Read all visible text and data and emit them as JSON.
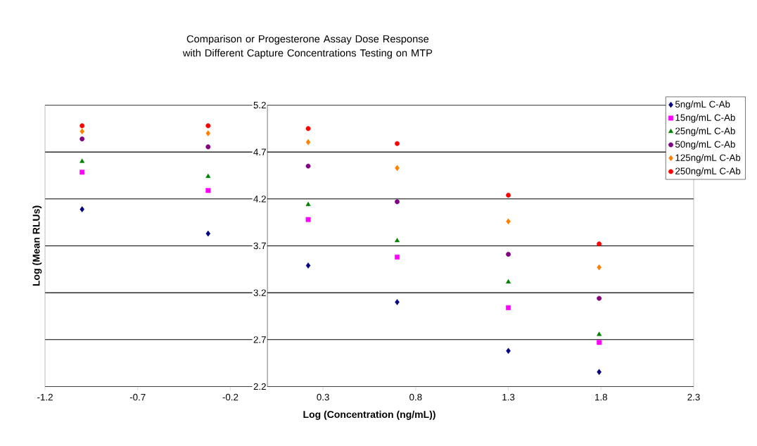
{
  "chart_data": {
    "type": "scatter",
    "title": "Comparison or Progesterone Assay Dose Response with Different Capture Concentrations Testing on MTP",
    "xlabel": "Log (Concentration (ng/mL))",
    "ylabel": "Log (Mean RLUs)",
    "x": [
      -1.0,
      -0.32,
      0.22,
      0.7,
      1.3,
      1.79
    ],
    "xlim": [
      -1.2,
      2.3
    ],
    "xticks": [
      -1.2,
      -0.7,
      -0.2,
      0.3,
      0.8,
      1.3,
      1.8,
      2.3
    ],
    "ylim": [
      2.2,
      5.2
    ],
    "yticks": [
      2.2,
      2.7,
      3.2,
      3.7,
      4.2,
      4.7,
      5.2
    ],
    "grid": "y",
    "legend": "top right",
    "series": [
      {
        "name": "5ng/mL C-Ab",
        "color": "#000080",
        "marker": "diamond",
        "values": [
          4.09,
          3.83,
          3.49,
          3.1,
          2.58,
          2.355
        ]
      },
      {
        "name": "15ng/mL C-Ab",
        "color": "#ff00ff",
        "marker": "square",
        "values": [
          4.485,
          4.29,
          3.98,
          3.58,
          3.04,
          2.67
        ]
      },
      {
        "name": "25ng/mL C-Ab",
        "color": "#008000",
        "marker": "triangle",
        "values": [
          4.6,
          4.44,
          4.14,
          3.755,
          3.315,
          2.755
        ]
      },
      {
        "name": "50ng/mL C-Ab",
        "color": "#800080",
        "marker": "circle",
        "values": [
          4.84,
          4.755,
          4.55,
          4.17,
          3.61,
          3.14
        ]
      },
      {
        "name": "125ng/mL C-Ab",
        "color": "#ff8000",
        "marker": "diamond",
        "values": [
          4.92,
          4.9,
          4.805,
          4.53,
          3.96,
          3.47
        ]
      },
      {
        "name": "250ng/mL C-Ab",
        "color": "#ff0000",
        "marker": "circle",
        "values": [
          4.98,
          4.98,
          4.95,
          4.79,
          4.24,
          3.72
        ]
      }
    ]
  }
}
